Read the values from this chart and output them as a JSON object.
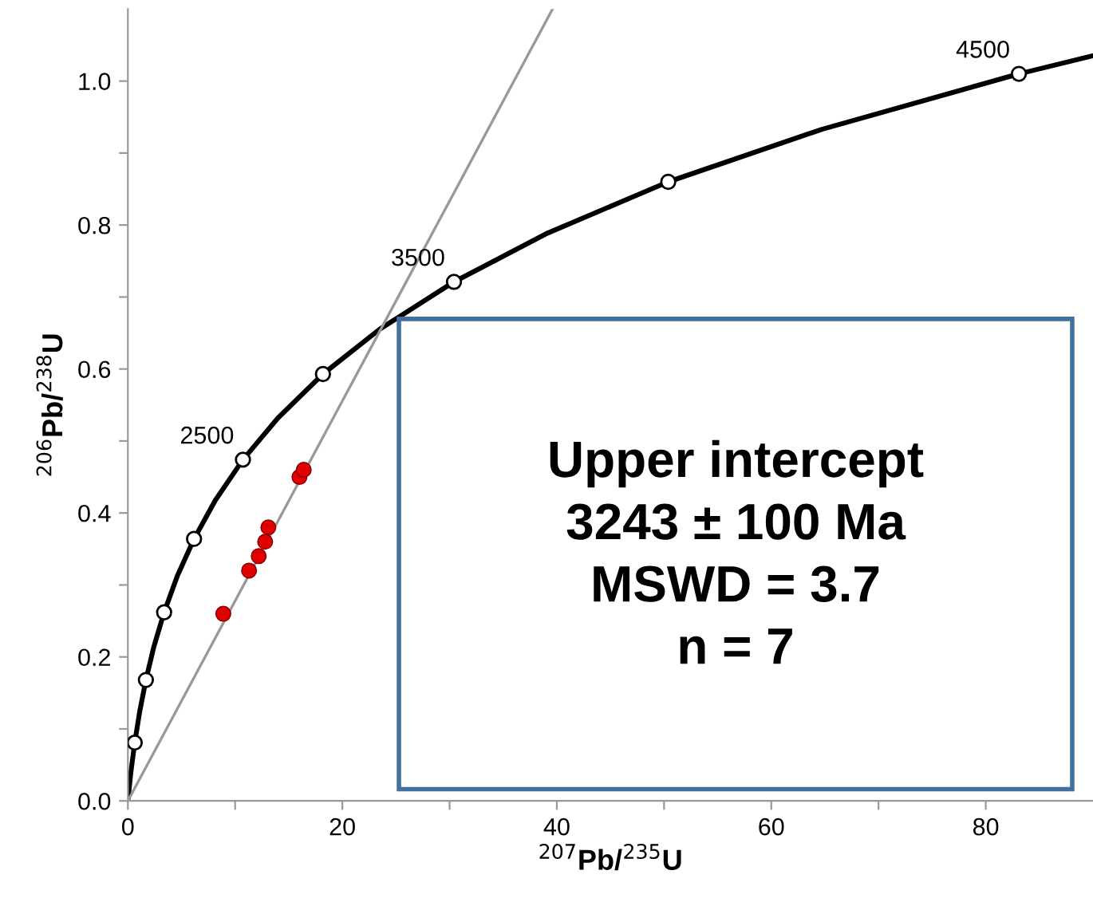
{
  "chart_data": {
    "type": "line",
    "xlabel": "$^{207}$Pb/$^{235}$U",
    "ylabel": "$^{206}$Pb/$^{238}$U",
    "series": [
      {
        "color": "#000000",
        "x": [
          0,
          0.28,
          0.64,
          1.09,
          1.68,
          2.42,
          3.38,
          4.6,
          6.17,
          8.17,
          10.73,
          14.0,
          18.19,
          23.55,
          30.41,
          39.17,
          50.39,
          64.73,
          83.09,
          89.98
        ],
        "values": [
          0,
          0.04,
          0.081,
          0.123,
          0.168,
          0.214,
          0.262,
          0.312,
          0.364,
          0.418,
          0.474,
          0.532,
          0.593,
          0.656,
          0.721,
          0.789,
          0.86,
          0.933,
          1.01,
          1.035
        ]
      },
      {
        "type": "scatter",
        "marker": "circle",
        "color": "#000000",
        "x": [
          0.64,
          1.68,
          3.38,
          6.17,
          10.73,
          18.19,
          30.41,
          50.39,
          83.09
        ],
        "values": [
          0.081,
          0.168,
          0.262,
          0.364,
          0.474,
          0.593,
          0.721,
          0.86,
          1.01
        ]
      },
      {
        "color": "#999999",
        "x": [
          0,
          39.6
        ],
        "values": [
          0,
          1.1
        ]
      },
      {
        "type": "scatter",
        "marker": "circle",
        "color": "#e00000",
        "x": [
          8.9,
          11.3,
          12.2,
          12.8,
          13.1,
          16.0,
          16.4
        ],
        "values": [
          0.26,
          0.32,
          0.34,
          0.36,
          0.38,
          0.45,
          0.46
        ]
      }
    ],
    "xlim": [
      0,
      90
    ],
    "ylim": [
      0,
      1.1
    ],
    "xticks": [
      0,
      {
        "value": 10,
        "label": null
      },
      20,
      {
        "value": 30,
        "label": null
      },
      40,
      {
        "value": 50,
        "label": null
      },
      60,
      {
        "value": 70,
        "label": null
      },
      80
    ],
    "yticks": [
      {
        "value": 0,
        "label": "0.0"
      },
      {
        "value": 0.1,
        "label": null
      },
      0.2,
      {
        "value": 0.3,
        "label": null
      },
      0.4,
      {
        "value": 0.5,
        "label": null
      },
      0.6,
      {
        "value": 0.7,
        "label": null
      },
      0.8,
      {
        "value": 0.9,
        "label": null
      },
      {
        "value": 1.0,
        "label": "1.0"
      }
    ],
    "annotations": [
      {
        "text": "2500",
        "x": 10.73,
        "y": 0.474
      },
      {
        "text": "3500",
        "x": 30.41,
        "y": 0.721
      },
      {
        "text": "4500",
        "x": 83.09,
        "y": 1.01
      },
      "Upper intercept\n3243 ± 100 Ma\nMSWD = 3.7\nn = 7"
    ]
  }
}
